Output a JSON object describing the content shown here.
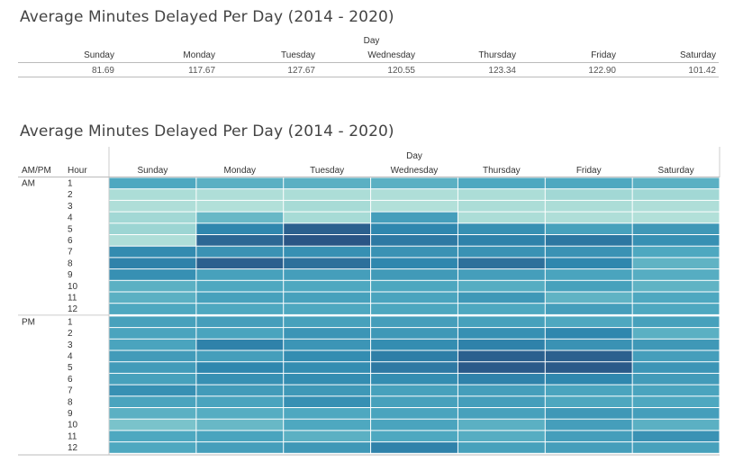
{
  "summary": {
    "title": "Average Minutes Delayed Per Day (2014 - 2020)",
    "column_group_label": "Day",
    "days": [
      "Sunday",
      "Monday",
      "Tuesday",
      "Wednesday",
      "Thursday",
      "Friday",
      "Saturday"
    ],
    "values": [
      "81.69",
      "117.67",
      "127.67",
      "120.55",
      "123.34",
      "122.90",
      "101.42"
    ]
  },
  "heatmap": {
    "title": "Average Minutes Delayed Per Day (2014 - 2020)",
    "column_group_label": "Day",
    "row_header_1": "AM/PM",
    "row_header_2": "Hour",
    "days": [
      "Sunday",
      "Monday",
      "Tuesday",
      "Wednesday",
      "Thursday",
      "Friday",
      "Saturday"
    ],
    "periods": [
      "AM",
      "PM"
    ],
    "hours": [
      "1",
      "2",
      "3",
      "4",
      "5",
      "6",
      "7",
      "8",
      "9",
      "10",
      "11",
      "12"
    ],
    "color_low": "#b7e4da",
    "color_high": "#2a5a8a"
  },
  "chart_data": [
    {
      "type": "table",
      "title": "Average Minutes Delayed Per Day (2014 - 2020)",
      "column_label": "Day",
      "categories": [
        "Sunday",
        "Monday",
        "Tuesday",
        "Wednesday",
        "Thursday",
        "Friday",
        "Saturday"
      ],
      "values": [
        81.69,
        117.67,
        127.67,
        120.55,
        123.34,
        122.9,
        101.42
      ]
    },
    {
      "type": "heatmap",
      "title": "Average Minutes Delayed Per Day (2014 - 2020)",
      "x_label": "Day",
      "x": [
        "Sunday",
        "Monday",
        "Tuesday",
        "Wednesday",
        "Thursday",
        "Friday",
        "Saturday"
      ],
      "y_label": "Hour",
      "y_groups": [
        "AM",
        "PM"
      ],
      "y": [
        "1",
        "2",
        "3",
        "4",
        "5",
        "6",
        "7",
        "8",
        "9",
        "10",
        "11",
        "12"
      ],
      "intensity_scale": [
        0,
        1
      ],
      "values_AM": [
        [
          0.55,
          0.5,
          0.5,
          0.5,
          0.55,
          0.55,
          0.5
        ],
        [
          0.12,
          0.1,
          0.12,
          0.1,
          0.12,
          0.18,
          0.18
        ],
        [
          0.1,
          0.08,
          0.15,
          0.08,
          0.12,
          0.12,
          0.1
        ],
        [
          0.18,
          0.45,
          0.15,
          0.62,
          0.12,
          0.1,
          0.08
        ],
        [
          0.22,
          0.78,
          0.95,
          0.78,
          0.72,
          0.6,
          0.66
        ],
        [
          0.1,
          0.92,
          1.0,
          0.84,
          0.8,
          0.85,
          0.72
        ],
        [
          0.75,
          0.7,
          0.72,
          0.7,
          0.7,
          0.7,
          0.55
        ],
        [
          0.8,
          0.95,
          0.88,
          0.78,
          0.88,
          0.78,
          0.48
        ],
        [
          0.72,
          0.6,
          0.62,
          0.65,
          0.62,
          0.58,
          0.52
        ],
        [
          0.5,
          0.55,
          0.55,
          0.56,
          0.52,
          0.6,
          0.48
        ],
        [
          0.5,
          0.6,
          0.6,
          0.58,
          0.66,
          0.48,
          0.55
        ],
        [
          0.55,
          0.55,
          0.55,
          0.56,
          0.55,
          0.62,
          0.55
        ]
      ],
      "values_PM": [
        [
          0.6,
          0.62,
          0.6,
          0.62,
          0.6,
          0.55,
          0.6
        ],
        [
          0.58,
          0.58,
          0.68,
          0.66,
          0.72,
          0.78,
          0.5
        ],
        [
          0.58,
          0.8,
          0.68,
          0.74,
          0.8,
          0.7,
          0.66
        ],
        [
          0.64,
          0.62,
          0.74,
          0.82,
          0.95,
          0.95,
          0.62
        ],
        [
          0.64,
          0.78,
          0.74,
          0.84,
          0.98,
          0.98,
          0.68
        ],
        [
          0.6,
          0.72,
          0.74,
          0.74,
          0.8,
          0.78,
          0.64
        ],
        [
          0.72,
          0.64,
          0.66,
          0.6,
          0.62,
          0.58,
          0.58
        ],
        [
          0.58,
          0.58,
          0.72,
          0.6,
          0.62,
          0.56,
          0.55
        ],
        [
          0.5,
          0.52,
          0.55,
          0.58,
          0.6,
          0.66,
          0.62
        ],
        [
          0.38,
          0.45,
          0.55,
          0.58,
          0.5,
          0.62,
          0.5
        ],
        [
          0.55,
          0.58,
          0.5,
          0.55,
          0.52,
          0.62,
          0.7
        ],
        [
          0.55,
          0.62,
          0.66,
          0.8,
          0.6,
          0.62,
          0.6
        ]
      ]
    }
  ]
}
